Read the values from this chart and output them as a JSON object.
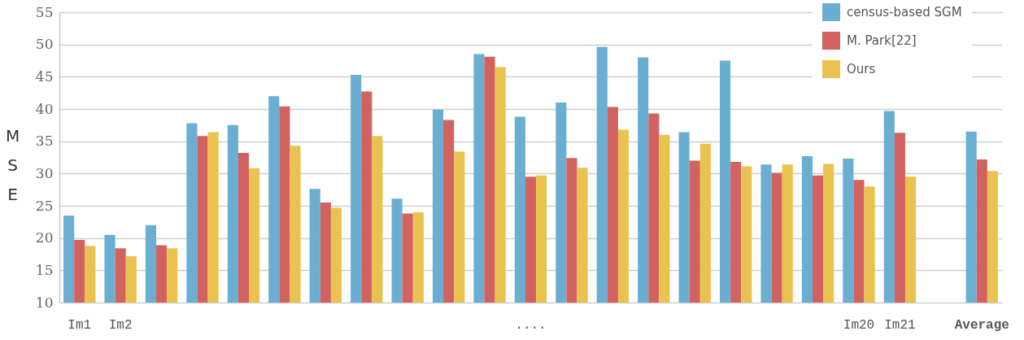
{
  "chart_data": {
    "type": "bar",
    "ylabel": "MSE",
    "categories": [
      "Im1",
      "Im2",
      null,
      null,
      null,
      null,
      null,
      null,
      null,
      null,
      null,
      "....",
      null,
      null,
      null,
      null,
      null,
      null,
      null,
      "Im20",
      "Im21",
      null,
      "Average"
    ],
    "series": [
      {
        "name": "census-based SGM",
        "color": "#6aaed2",
        "values": [
          23.5,
          20.5,
          22.0,
          37.8,
          37.5,
          42.0,
          27.6,
          45.3,
          26.1,
          39.9,
          48.5,
          38.8,
          41.0,
          49.6,
          48.0,
          36.4,
          47.5,
          31.4,
          32.7,
          32.3,
          39.7,
          null,
          36.5
        ]
      },
      {
        "name": "M. Park[22]",
        "color": "#d2625f",
        "values": [
          19.7,
          18.4,
          18.9,
          35.8,
          33.2,
          40.4,
          25.5,
          42.7,
          23.8,
          38.3,
          48.1,
          29.5,
          32.4,
          40.3,
          39.3,
          32.0,
          31.8,
          30.1,
          29.7,
          29.0,
          36.3,
          null,
          32.2
        ]
      },
      {
        "name": "Ours",
        "color": "#eac24f",
        "values": [
          18.8,
          17.2,
          18.4,
          36.4,
          30.8,
          34.3,
          24.7,
          35.8,
          24.0,
          33.4,
          46.5,
          29.7,
          30.9,
          36.8,
          36.0,
          34.6,
          31.1,
          31.4,
          31.5,
          28.0,
          29.5,
          null,
          30.4
        ]
      }
    ],
    "ylim": [
      10,
      55
    ],
    "yticks": [
      10,
      15,
      20,
      25,
      30,
      35,
      40,
      45,
      50,
      55
    ],
    "grid": "y",
    "legend": "top right"
  }
}
